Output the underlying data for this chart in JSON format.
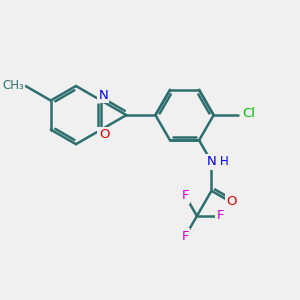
{
  "bg_color": "#f0f0f0",
  "bond_color": "#2d6e6e",
  "bond_width": 1.8,
  "atom_colors": {
    "N": "#0000ee",
    "O": "#dd0000",
    "Cl": "#00bb00",
    "F": "#cc00cc",
    "C": "#2d6e6e"
  },
  "canvas_xlim": [
    0,
    10
  ],
  "canvas_ylim": [
    0,
    10
  ],
  "figsize": [
    3.0,
    3.0
  ],
  "dpi": 100
}
